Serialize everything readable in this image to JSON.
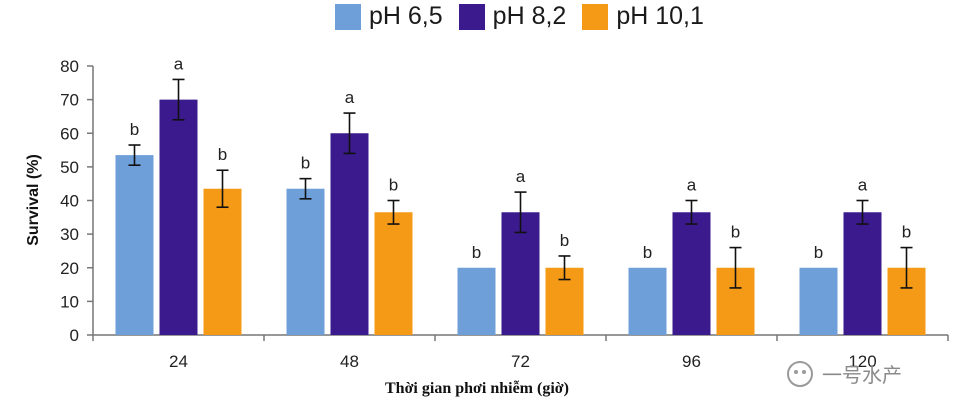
{
  "chart_data": {
    "type": "bar",
    "categories": [
      "24",
      "48",
      "72",
      "96",
      "120"
    ],
    "series": [
      {
        "name": "pH 6,5",
        "color": "#6f9fd8",
        "values": [
          53.5,
          43.5,
          20,
          20,
          20
        ],
        "errors": [
          3,
          3,
          0,
          0,
          0
        ],
        "letters": [
          "b",
          "b",
          "b",
          "b",
          "b"
        ]
      },
      {
        "name": "pH 8,2",
        "color": "#3a1a8c",
        "values": [
          70,
          60,
          36.5,
          36.5,
          36.5
        ],
        "errors": [
          6,
          6,
          6,
          3.5,
          3.5
        ],
        "letters": [
          "a",
          "a",
          "a",
          "a",
          "a"
        ]
      },
      {
        "name": "pH 10,1",
        "color": "#f59a16",
        "values": [
          43.5,
          36.5,
          20,
          20,
          20
        ],
        "errors": [
          5.5,
          3.5,
          3.5,
          6,
          6
        ],
        "letters": [
          "b",
          "b",
          "b",
          "b",
          "b"
        ]
      }
    ],
    "xlabel": "Thời gian phơi nhiễm (giờ)",
    "ylabel": "Survival (%)",
    "ylim": [
      0,
      80
    ],
    "yticks": [
      "0",
      "10",
      "20",
      "30",
      "40",
      "50",
      "60",
      "70",
      "80"
    ],
    "grid": false,
    "legend_position": "top"
  },
  "watermark": {
    "text": "一号水产"
  }
}
